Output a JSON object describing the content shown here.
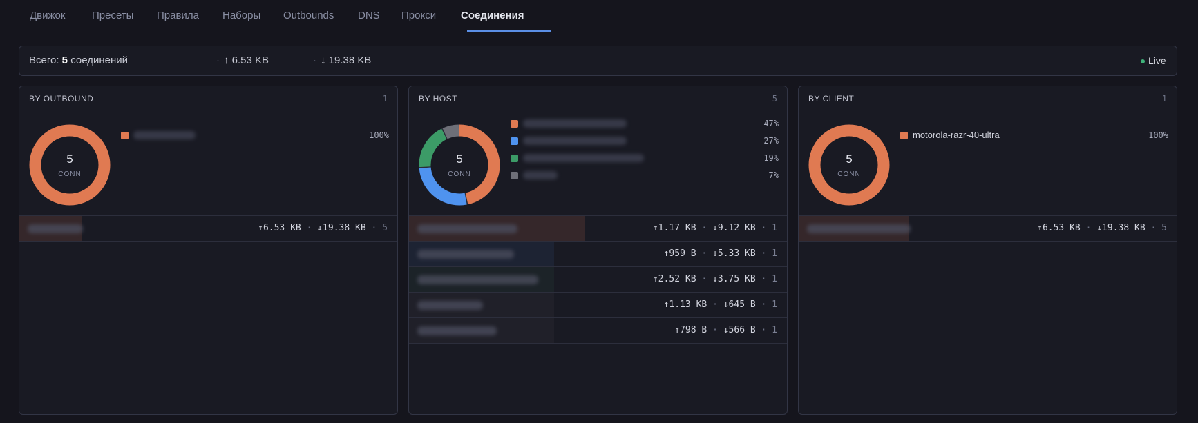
{
  "tabs": [
    {
      "label": "Движок",
      "active": false
    },
    {
      "label": "Пресеты",
      "active": false
    },
    {
      "label": "Правила",
      "active": false
    },
    {
      "label": "Наборы",
      "active": false
    },
    {
      "label": "Outbounds",
      "active": false
    },
    {
      "label": "DNS",
      "active": false
    },
    {
      "label": "Прокси",
      "active": false
    },
    {
      "label": "Соединения",
      "active": true
    }
  ],
  "summary": {
    "total_prefix": "Всего:",
    "total_count": "5",
    "total_suffix": "соединений",
    "upload": "↑ 6.53 KB",
    "download": "↓ 19.38 KB",
    "live_label": "Live",
    "live_color": "#3fb27a"
  },
  "panels": [
    {
      "title": "BY OUTBOUND",
      "count": "1",
      "donut_value": "5",
      "donut_label": "CONN",
      "slices": [
        {
          "color": "#e07a52",
          "fraction": 1.0,
          "label": "",
          "pct": "100%"
        }
      ],
      "rows": [
        {
          "up": "↑6.53 KB",
          "down": "↓19.38 KB",
          "count": "5",
          "fill_fraction": 1.0,
          "color": "#e07a52"
        }
      ]
    },
    {
      "title": "BY HOST",
      "count": "5",
      "donut_value": "5",
      "donut_label": "CONN",
      "slices": [
        {
          "color": "#e07a52",
          "fraction": 0.47,
          "label": "",
          "pct": "47%"
        },
        {
          "color": "#4f93ef",
          "fraction": 0.27,
          "label": "",
          "pct": "27%"
        },
        {
          "color": "#3c9b67",
          "fraction": 0.19,
          "label": "",
          "pct": "19%"
        },
        {
          "color": "#6e6f78",
          "fraction": 0.07,
          "label": "",
          "pct": "7%"
        }
      ],
      "rows": [
        {
          "up": "↑1.17 KB",
          "down": "↓9.12 KB",
          "count": "1",
          "fill_fraction": 0.47,
          "color": "#e07a52"
        },
        {
          "up": "↑959 B",
          "down": "↓5.33 KB",
          "count": "1",
          "fill_fraction": 0.27,
          "color": "#4f93ef"
        },
        {
          "up": "↑2.52 KB",
          "down": "↓3.75 KB",
          "count": "1",
          "fill_fraction": 0.19,
          "color": "#3c9b67"
        },
        {
          "up": "↑1.13 KB",
          "down": "↓645 B",
          "count": "1",
          "fill_fraction": 0.07,
          "color": "#6e6f78"
        },
        {
          "up": "↑798 B",
          "down": "↓566 B",
          "count": "1",
          "fill_fraction": 0.07,
          "color": "#6e6f78"
        }
      ]
    },
    {
      "title": "BY CLIENT",
      "count": "1",
      "donut_value": "5",
      "donut_label": "CONN",
      "slices": [
        {
          "color": "#e07a52",
          "fraction": 1.0,
          "label": "motorola-razr-40-ultra",
          "pct": "100%"
        }
      ],
      "rows": [
        {
          "up": "↑6.53 KB",
          "down": "↓19.38 KB",
          "count": "5",
          "fill_fraction": 1.0,
          "color": "#e07a52"
        }
      ]
    }
  ]
}
